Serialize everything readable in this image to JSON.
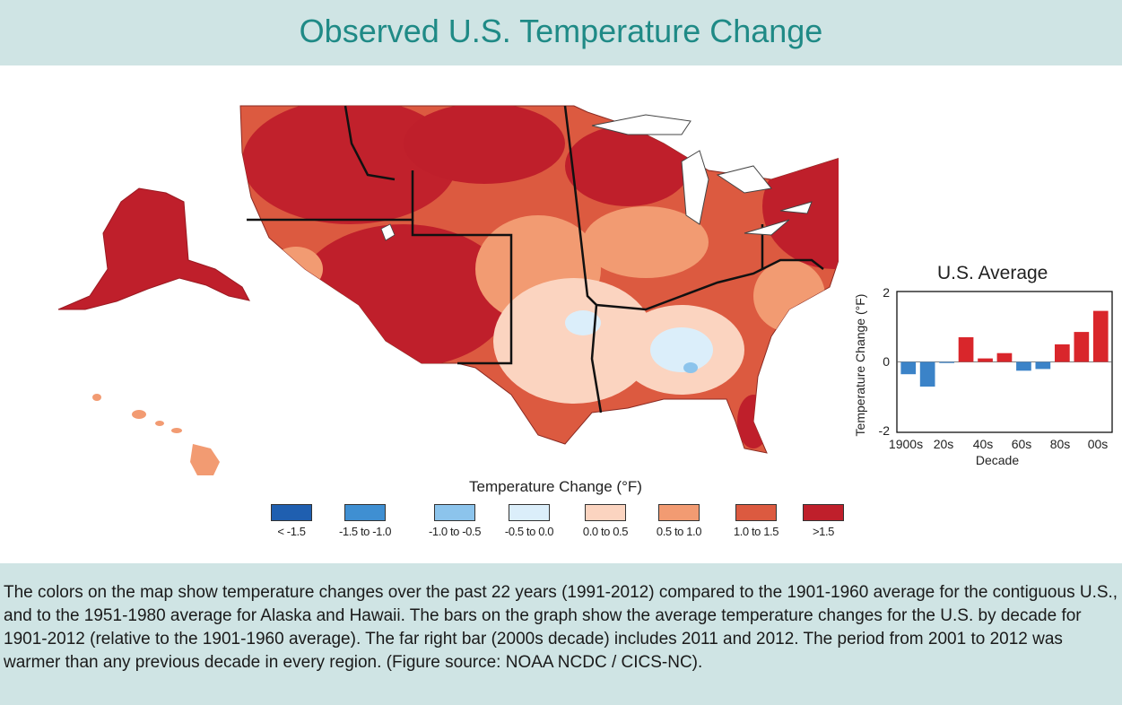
{
  "title": "Observed U.S. Temperature Change",
  "legend": {
    "title": "Temperature Change (°F)",
    "items": [
      {
        "label": "< -1.5",
        "color": "#1f5fb0"
      },
      {
        "label": "-1.5 to -1.0",
        "color": "#3f8fd2"
      },
      {
        "label": "-1.0 to -0.5",
        "color": "#8cc4ec"
      },
      {
        "label": "-0.5 to 0.0",
        "color": "#dbeefa"
      },
      {
        "label": "0.0 to 0.5",
        "color": "#fbd4c0"
      },
      {
        "label": "0.5 to 1.0",
        "color": "#f29b72"
      },
      {
        "label": "1.0 to 1.5",
        "color": "#dc5a40"
      },
      {
        "label": ">1.5",
        "color": "#bf1f2b"
      }
    ]
  },
  "map": {
    "regions": [
      {
        "name": "Alaska",
        "category": ">1.5"
      },
      {
        "name": "Hawaii",
        "category": "0.5 to 1.0"
      },
      {
        "name": "Northwest",
        "category": "1.0 to 1.5"
      },
      {
        "name": "Southwest",
        "category": ">1.5"
      },
      {
        "name": "Great Plains",
        "category": "0.5 to 1.0"
      },
      {
        "name": "Midwest",
        "category": "1.0 to 1.5"
      },
      {
        "name": "Northeast",
        "category": ">1.5"
      },
      {
        "name": "Southeast",
        "category": "0.0 to 0.5"
      }
    ]
  },
  "inset": {
    "title": "U.S. Average",
    "ylabel": "Temperature Change (°F)",
    "xlabel": "Decade",
    "y_ticks": [
      "2",
      "0",
      "-2"
    ],
    "x_ticks": [
      "1900s",
      "20s",
      "40s",
      "60s",
      "80s",
      "00s"
    ]
  },
  "chart_data": {
    "type": "bar",
    "title": "U.S. Average",
    "xlabel": "Decade",
    "ylabel": "Temperature Change (°F)",
    "ylim": [
      -2,
      2
    ],
    "categories": [
      "1900s",
      "1910s",
      "1920s",
      "1930s",
      "1940s",
      "1950s",
      "1960s",
      "1970s",
      "1980s",
      "1990s",
      "2000s"
    ],
    "values": [
      -0.35,
      -0.7,
      -0.03,
      0.7,
      0.1,
      0.25,
      -0.25,
      -0.2,
      0.5,
      0.85,
      1.45
    ],
    "positive_color": "#d9262b",
    "negative_color": "#3b83c8",
    "grid": false
  },
  "caption": "The colors on the map show temperature changes over the past 22 years (1991-2012) compared to the 1901-1960 average for the contiguous U.S., and to the 1951-1980 average for Alaska and Hawaii. The bars on the graph show the average temperature changes for the U.S. by decade for 1901-2012 (relative to the 1901-1960 average). The far right bar (2000s decade) includes 2011 and 2012. The period from 2001 to 2012 was warmer than any previous decade in every region. (Figure source: NOAA NCDC / CICS-NC)."
}
